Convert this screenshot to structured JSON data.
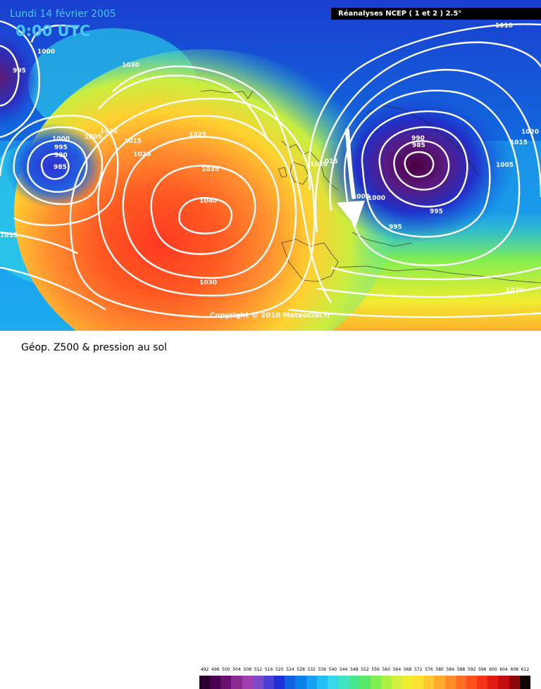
{
  "header": {
    "date": "Lundi 14 février 2005",
    "time": "0:00 UTC",
    "source": "Réanalyses NCEP ( 1 et 2 ) 2.5°"
  },
  "copyright": "Copyright © 2010 Meteociel.fr",
  "footer": {
    "title": "Géop. Z500 & pression au sol"
  },
  "scale": {
    "values": [
      "492",
      "496",
      "500",
      "504",
      "508",
      "512",
      "516",
      "520",
      "524",
      "528",
      "532",
      "536",
      "540",
      "544",
      "548",
      "552",
      "556",
      "560",
      "564",
      "568",
      "572",
      "576",
      "580",
      "584",
      "588",
      "592",
      "596",
      "600",
      "604",
      "608",
      "612"
    ],
    "colors": [
      "#2a0030",
      "#4a0050",
      "#6a1070",
      "#8a2a90",
      "#a040b0",
      "#7a4ac8",
      "#4b3fd6",
      "#2030d8",
      "#1060e0",
      "#0a80ea",
      "#16a0f0",
      "#22c0f2",
      "#34d8e8",
      "#40e4c0",
      "#48e690",
      "#5ae86a",
      "#80ee50",
      "#aaf040",
      "#d2f038",
      "#f0ec30",
      "#fde030",
      "#ffc830",
      "#ffaa2c",
      "#ff8c28",
      "#ff6e22",
      "#ff501e",
      "#f63218",
      "#e01a14",
      "#c00e10",
      "#8e0808",
      "#100000"
    ],
    "key_colors": {
      "high_center": "#ff3a22",
      "low_center": "#4a0040",
      "isobar": "#ffffff",
      "arrow": "#ffffff"
    }
  },
  "isobar_labels": [
    {
      "text": "1000"
    },
    {
      "text": "995"
    },
    {
      "text": "1030"
    },
    {
      "text": "1010"
    },
    {
      "text": "1005"
    },
    {
      "text": "1000"
    },
    {
      "text": "995"
    },
    {
      "text": "990"
    },
    {
      "text": "985"
    },
    {
      "text": "1015"
    },
    {
      "text": "1020"
    },
    {
      "text": "1025"
    },
    {
      "text": "1035"
    },
    {
      "text": "1040"
    },
    {
      "text": "1030"
    },
    {
      "text": "1015"
    },
    {
      "text": "1020"
    },
    {
      "text": "1005"
    },
    {
      "text": "1000"
    },
    {
      "text": "990"
    },
    {
      "text": "985"
    },
    {
      "text": "1005"
    },
    {
      "text": "995"
    },
    {
      "text": "995"
    },
    {
      "text": "1010"
    },
    {
      "text": "1020"
    },
    {
      "text": "1015"
    },
    {
      "text": "1020"
    },
    {
      "text": "015"
    }
  ],
  "pressure_centers": {
    "high": {
      "value": "1040"
    },
    "low": {
      "value": "985"
    }
  }
}
